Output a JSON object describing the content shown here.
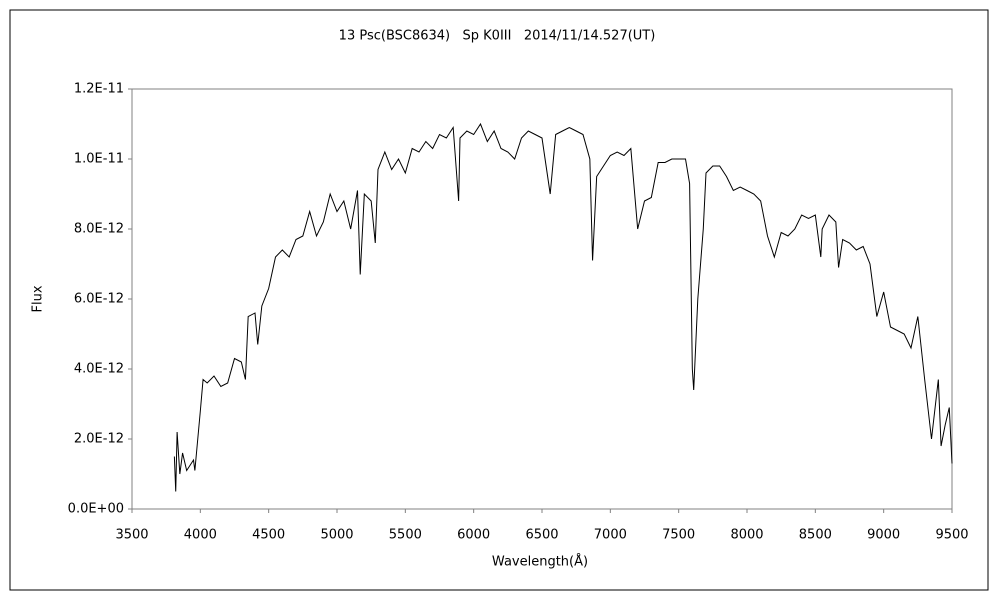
{
  "chart_data": {
    "type": "line",
    "title": "13 Psc(BSC8634)   Sp K0III   2014/11/14.527(UT)",
    "x_label": "Wavelength(Å)",
    "y_label": "Flux",
    "xlim": [
      3500,
      9500
    ],
    "xticks": [
      3500,
      4000,
      4500,
      5000,
      5500,
      6000,
      6500,
      7000,
      7500,
      8000,
      8500,
      9000,
      9500
    ],
    "ylim": [
      0,
      1.2e-11
    ],
    "yticks": [
      {
        "value": 0,
        "label": "0.0E+00"
      },
      {
        "value": 2e-12,
        "label": "2.0E-12"
      },
      {
        "value": 4e-12,
        "label": "4.0E-12"
      },
      {
        "value": 6e-12,
        "label": "6.0E-12"
      },
      {
        "value": 8e-12,
        "label": "8.0E-12"
      },
      {
        "value": 1e-11,
        "label": "1.0E-11"
      },
      {
        "value": 1.2e-11,
        "label": "1.2E-11"
      }
    ],
    "grid": false,
    "series": [
      {
        "color": "#000000",
        "x": [
          3810,
          3820,
          3830,
          3850,
          3870,
          3900,
          3950,
          3960,
          4000,
          4020,
          4050,
          4100,
          4150,
          4200,
          4250,
          4300,
          4330,
          4350,
          4400,
          4420,
          4450,
          4500,
          4550,
          4600,
          4650,
          4700,
          4750,
          4800,
          4850,
          4900,
          4950,
          5000,
          5050,
          5100,
          5150,
          5170,
          5200,
          5250,
          5280,
          5300,
          5350,
          5400,
          5450,
          5500,
          5550,
          5600,
          5650,
          5700,
          5750,
          5800,
          5850,
          5890,
          5900,
          5950,
          6000,
          6050,
          6100,
          6150,
          6200,
          6250,
          6300,
          6350,
          6400,
          6450,
          6500,
          6560,
          6600,
          6650,
          6700,
          6750,
          6800,
          6850,
          6870,
          6900,
          6950,
          7000,
          7050,
          7100,
          7150,
          7200,
          7250,
          7300,
          7350,
          7400,
          7450,
          7500,
          7550,
          7580,
          7600,
          7610,
          7640,
          7680,
          7700,
          7750,
          7800,
          7850,
          7900,
          7950,
          8000,
          8050,
          8100,
          8150,
          8200,
          8250,
          8300,
          8350,
          8400,
          8450,
          8500,
          8540,
          8550,
          8600,
          8650,
          8670,
          8700,
          8750,
          8800,
          8850,
          8900,
          8950,
          9000,
          9050,
          9100,
          9150,
          9200,
          9250,
          9300,
          9350,
          9400,
          9420,
          9450,
          9480,
          9500
        ],
        "values": [
          1.5e-12,
          5e-13,
          2.2e-12,
          1e-12,
          1.6e-12,
          1.1e-12,
          1.4e-12,
          1.1e-12,
          2.8e-12,
          3.7e-12,
          3.6e-12,
          3.8e-12,
          3.5e-12,
          3.6e-12,
          4.3e-12,
          4.2e-12,
          3.7e-12,
          5.5e-12,
          5.6e-12,
          4.7e-12,
          5.8e-12,
          6.3e-12,
          7.2e-12,
          7.4e-12,
          7.2e-12,
          7.7e-12,
          7.8e-12,
          8.5e-12,
          7.8e-12,
          8.2e-12,
          9e-12,
          8.5e-12,
          8.8e-12,
          8e-12,
          9.1e-12,
          6.7e-12,
          9e-12,
          8.8e-12,
          7.6e-12,
          9.7e-12,
          1.02e-11,
          9.7e-12,
          1e-11,
          9.6e-12,
          1.03e-11,
          1.02e-11,
          1.05e-11,
          1.03e-11,
          1.07e-11,
          1.06e-11,
          1.09e-11,
          8.8e-12,
          1.06e-11,
          1.08e-11,
          1.07e-11,
          1.1e-11,
          1.05e-11,
          1.08e-11,
          1.03e-11,
          1.02e-11,
          1e-11,
          1.06e-11,
          1.08e-11,
          1.07e-11,
          1.06e-11,
          9e-12,
          1.07e-11,
          1.08e-11,
          1.09e-11,
          1.08e-11,
          1.07e-11,
          1e-11,
          7.1e-12,
          9.5e-12,
          9.8e-12,
          1.01e-11,
          1.02e-11,
          1.01e-11,
          1.03e-11,
          8e-12,
          8.8e-12,
          8.9e-12,
          9.9e-12,
          9.9e-12,
          1e-11,
          1e-11,
          1e-11,
          9.3e-12,
          4e-12,
          3.4e-12,
          6e-12,
          8e-12,
          9.6e-12,
          9.8e-12,
          9.8e-12,
          9.5e-12,
          9.1e-12,
          9.2e-12,
          9.1e-12,
          9e-12,
          8.8e-12,
          7.8e-12,
          7.2e-12,
          7.9e-12,
          7.8e-12,
          8e-12,
          8.4e-12,
          8.3e-12,
          8.4e-12,
          7.2e-12,
          8e-12,
          8.4e-12,
          8.2e-12,
          6.9e-12,
          7.7e-12,
          7.6e-12,
          7.4e-12,
          7.5e-12,
          7e-12,
          5.5e-12,
          6.2e-12,
          5.2e-12,
          5.1e-12,
          5e-12,
          4.6e-12,
          5.5e-12,
          3.7e-12,
          2e-12,
          3.7e-12,
          1.8e-12,
          2.4e-12,
          2.9e-12,
          1.3e-12
        ]
      }
    ]
  }
}
